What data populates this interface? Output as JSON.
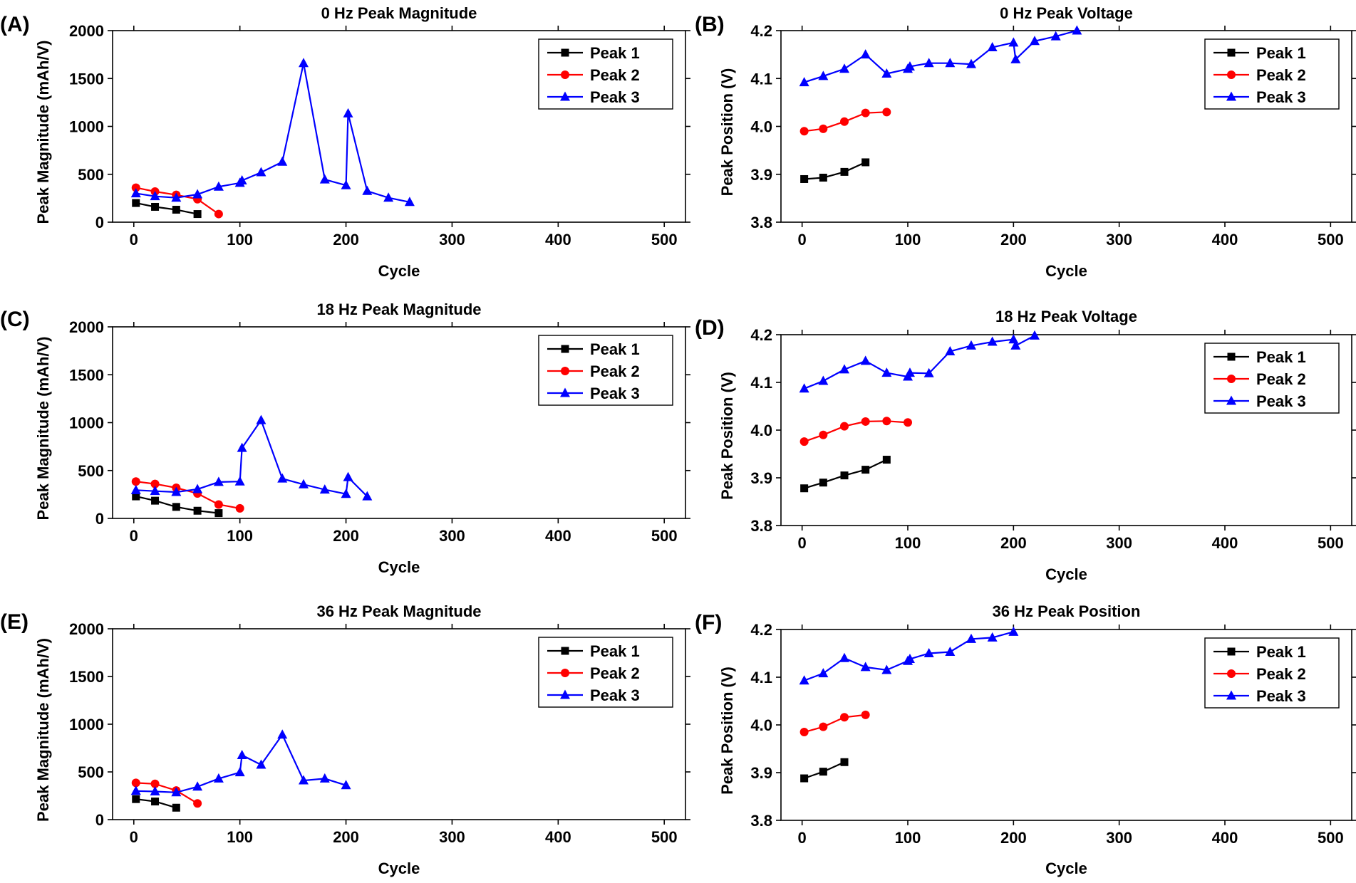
{
  "colors": {
    "Peak 1": "#000000",
    "Peak 2": "#ff0000",
    "Peak 3": "#0000ff"
  },
  "chart_data": [
    {
      "panel_label": "(A)",
      "type": "line",
      "title": "0 Hz Peak Magnitude",
      "xlabel": "Cycle",
      "ylabel": "Peak Magnitude (mAh/V)",
      "xlim": [
        -20,
        520
      ],
      "ylim": [
        0,
        2000
      ],
      "xticks": [
        0,
        100,
        200,
        300,
        400,
        500
      ],
      "yticks": [
        0,
        500,
        1000,
        1500,
        2000
      ],
      "ytick_labels": [
        "0",
        "500",
        "1000",
        "1500",
        "2000"
      ],
      "legend_position": "top-right",
      "series": [
        {
          "name": "Peak 1",
          "marker": "square",
          "x": [
            2,
            20,
            40,
            60
          ],
          "y": [
            200,
            160,
            130,
            85
          ]
        },
        {
          "name": "Peak 2",
          "marker": "circle",
          "x": [
            2,
            20,
            40,
            60,
            80
          ],
          "y": [
            360,
            320,
            285,
            240,
            85
          ]
        },
        {
          "name": "Peak 3",
          "marker": "triangle",
          "x": [
            2,
            20,
            40,
            60,
            80,
            100,
            102,
            120,
            140,
            160,
            180,
            200,
            202,
            220,
            240,
            260
          ],
          "y": [
            300,
            270,
            255,
            290,
            370,
            410,
            435,
            520,
            630,
            1660,
            445,
            385,
            1135,
            325,
            255,
            210
          ]
        }
      ]
    },
    {
      "panel_label": "(B)",
      "type": "line",
      "title": "0 Hz Peak Voltage",
      "xlabel": "Cycle",
      "ylabel": "Peak Position (V)",
      "xlim": [
        -20,
        520
      ],
      "ylim": [
        3.8,
        4.2
      ],
      "xticks": [
        0,
        100,
        200,
        300,
        400,
        500
      ],
      "yticks": [
        3.8,
        3.9,
        4.0,
        4.1,
        4.2
      ],
      "ytick_labels": [
        "3.8",
        "3.9",
        "4.0",
        "4.1",
        "4.2"
      ],
      "legend_position": "top-right",
      "series": [
        {
          "name": "Peak 1",
          "marker": "square",
          "x": [
            2,
            20,
            40,
            60
          ],
          "y": [
            3.89,
            3.893,
            3.905,
            3.925
          ]
        },
        {
          "name": "Peak 2",
          "marker": "circle",
          "x": [
            2,
            20,
            40,
            60,
            80
          ],
          "y": [
            3.99,
            3.995,
            4.01,
            4.028,
            4.03
          ]
        },
        {
          "name": "Peak 3",
          "marker": "triangle",
          "x": [
            2,
            20,
            40,
            60,
            80,
            100,
            102,
            120,
            140,
            160,
            180,
            200,
            202,
            220,
            240,
            260
          ],
          "y": [
            4.092,
            4.105,
            4.12,
            4.15,
            4.11,
            4.12,
            4.125,
            4.132,
            4.132,
            4.13,
            4.165,
            4.175,
            4.14,
            4.178,
            4.188,
            4.2
          ]
        }
      ]
    },
    {
      "panel_label": "(C)",
      "type": "line",
      "title": "18 Hz Peak Magnitude",
      "xlabel": "Cycle",
      "ylabel": "Peak Magnitude (mAh/V)",
      "xlim": [
        -20,
        520
      ],
      "ylim": [
        0,
        2000
      ],
      "xticks": [
        0,
        100,
        200,
        300,
        400,
        500
      ],
      "yticks": [
        0,
        500,
        1000,
        1500,
        2000
      ],
      "ytick_labels": [
        "0",
        "500",
        "1000",
        "1500",
        "2000"
      ],
      "legend_position": "top-right",
      "series": [
        {
          "name": "Peak 1",
          "marker": "square",
          "x": [
            2,
            20,
            40,
            60,
            80
          ],
          "y": [
            230,
            185,
            120,
            80,
            55
          ]
        },
        {
          "name": "Peak 2",
          "marker": "circle",
          "x": [
            2,
            20,
            40,
            60,
            80,
            100
          ],
          "y": [
            385,
            360,
            320,
            260,
            145,
            105
          ]
        },
        {
          "name": "Peak 3",
          "marker": "triangle",
          "x": [
            2,
            20,
            40,
            60,
            80,
            100,
            102,
            120,
            140,
            160,
            180,
            200,
            202,
            220
          ],
          "y": [
            295,
            285,
            275,
            305,
            380,
            385,
            735,
            1025,
            415,
            355,
            300,
            255,
            430,
            230
          ]
        }
      ]
    },
    {
      "panel_label": "(D)",
      "type": "line",
      "title": "18 Hz Peak Voltage",
      "xlabel": "Cycle",
      "ylabel": "Peak Position (V)",
      "xlim": [
        -20,
        520
      ],
      "ylim": [
        3.8,
        4.2
      ],
      "xticks": [
        0,
        100,
        200,
        300,
        400,
        500
      ],
      "yticks": [
        3.8,
        3.9,
        4.0,
        4.1,
        4.2
      ],
      "ytick_labels": [
        "3.8",
        "3.9",
        "4.0",
        "4.1",
        "4.2"
      ],
      "legend_position": "top-right",
      "series": [
        {
          "name": "Peak 1",
          "marker": "square",
          "x": [
            2,
            20,
            40,
            60,
            80
          ],
          "y": [
            3.878,
            3.89,
            3.905,
            3.917,
            3.938
          ]
        },
        {
          "name": "Peak 2",
          "marker": "circle",
          "x": [
            2,
            20,
            40,
            60,
            80,
            100
          ],
          "y": [
            3.976,
            3.99,
            4.008,
            4.018,
            4.019,
            4.016
          ]
        },
        {
          "name": "Peak 3",
          "marker": "triangle",
          "x": [
            2,
            20,
            40,
            60,
            80,
            100,
            102,
            120,
            140,
            160,
            180,
            200,
            202,
            220
          ],
          "y": [
            4.087,
            4.103,
            4.127,
            4.145,
            4.12,
            4.112,
            4.12,
            4.119,
            4.165,
            4.177,
            4.185,
            4.19,
            4.177,
            4.198
          ]
        }
      ]
    },
    {
      "panel_label": "(E)",
      "type": "line",
      "title": "36 Hz Peak Magnitude",
      "xlabel": "Cycle",
      "ylabel": "Peak Magnitude (mAh/V)",
      "xlim": [
        -20,
        520
      ],
      "ylim": [
        0,
        2000
      ],
      "xticks": [
        0,
        100,
        200,
        300,
        400,
        500
      ],
      "yticks": [
        0,
        500,
        1000,
        1500,
        2000
      ],
      "ytick_labels": [
        "0",
        "500",
        "1000",
        "1500",
        "2000"
      ],
      "legend_position": "top-right",
      "series": [
        {
          "name": "Peak 1",
          "marker": "square",
          "x": [
            2,
            20,
            40
          ],
          "y": [
            215,
            190,
            125
          ]
        },
        {
          "name": "Peak 2",
          "marker": "circle",
          "x": [
            2,
            20,
            40,
            60
          ],
          "y": [
            385,
            375,
            305,
            170
          ]
        },
        {
          "name": "Peak 3",
          "marker": "triangle",
          "x": [
            2,
            20,
            40,
            60,
            80,
            100,
            102,
            120,
            140,
            160,
            180,
            200
          ],
          "y": [
            300,
            295,
            285,
            345,
            430,
            495,
            675,
            575,
            890,
            410,
            430,
            360
          ]
        }
      ]
    },
    {
      "panel_label": "(F)",
      "type": "line",
      "title": "36 Hz Peak Position",
      "xlabel": "Cycle",
      "ylabel": "Peak Position (V)",
      "xlim": [
        -20,
        520
      ],
      "ylim": [
        3.8,
        4.2
      ],
      "xticks": [
        0,
        100,
        200,
        300,
        400,
        500
      ],
      "yticks": [
        3.8,
        3.9,
        4.0,
        4.1,
        4.2
      ],
      "ytick_labels": [
        "3.8",
        "3.9",
        "4.0",
        "4.1",
        "4.2"
      ],
      "legend_position": "top-right",
      "series": [
        {
          "name": "Peak 1",
          "marker": "square",
          "x": [
            2,
            20,
            40
          ],
          "y": [
            3.888,
            3.902,
            3.922
          ]
        },
        {
          "name": "Peak 2",
          "marker": "circle",
          "x": [
            2,
            20,
            40,
            60
          ],
          "y": [
            3.985,
            3.996,
            4.016,
            4.021
          ]
        },
        {
          "name": "Peak 3",
          "marker": "triangle",
          "x": [
            2,
            20,
            40,
            60,
            80,
            100,
            102,
            120,
            140,
            160,
            180,
            200
          ],
          "y": [
            4.093,
            4.108,
            4.14,
            4.121,
            4.115,
            4.134,
            4.138,
            4.15,
            4.153,
            4.18,
            4.183,
            4.195
          ]
        }
      ]
    }
  ]
}
